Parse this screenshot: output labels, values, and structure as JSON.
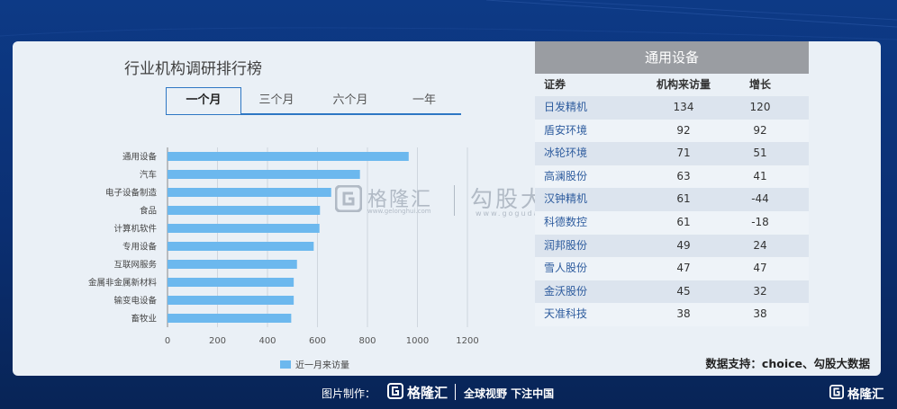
{
  "title": "行业机构调研排行榜",
  "tabs": [
    "一个月",
    "三个月",
    "六个月",
    "一年"
  ],
  "active_tab": 0,
  "watermark": {
    "name1": "格隆汇",
    "url1": "www.gelonghui.com",
    "name2": "勾股大数据",
    "url2": "www.gogudata.com"
  },
  "colors": {
    "bar": "#6cb8ee",
    "grid": "#cfd6de",
    "header": "#9a9da2",
    "accent": "#2e77c4"
  },
  "chart_data": {
    "type": "bar",
    "orientation": "horizontal",
    "categories": [
      "通用设备",
      "汽车",
      "电子设备制造",
      "食品",
      "计算机软件",
      "专用设备",
      "互联网服务",
      "金属非金属新材料",
      "输变电设备",
      "畜牧业"
    ],
    "series": [
      {
        "name": "近一月来访量",
        "values": [
          965,
          770,
          655,
          610,
          608,
          585,
          518,
          505,
          505,
          495
        ]
      }
    ],
    "xlim": [
      0,
      1200
    ],
    "xticks": [
      "0",
      "200",
      "400",
      "600",
      "800",
      "1000",
      "1200"
    ],
    "grid": true,
    "legend": "bottom"
  },
  "table": {
    "title": "通用设备",
    "headers": [
      "证券",
      "机构来访量",
      "增长"
    ],
    "rows": [
      [
        "日发精机",
        "134",
        "120"
      ],
      [
        "盾安环境",
        "92",
        "92"
      ],
      [
        "冰轮环境",
        "71",
        "51"
      ],
      [
        "高澜股份",
        "63",
        "41"
      ],
      [
        "汉钟精机",
        "61",
        "-44"
      ],
      [
        "科德数控",
        "61",
        "-18"
      ],
      [
        "润邦股份",
        "49",
        "24"
      ],
      [
        "雪人股份",
        "47",
        "47"
      ],
      [
        "金沃股份",
        "45",
        "32"
      ],
      [
        "天准科技",
        "38",
        "38"
      ]
    ]
  },
  "source": "数据支持：choice、勾股大数据",
  "footer": {
    "made_by": "图片制作：",
    "brand": "格隆汇",
    "slogan": "全球视野 下注中国",
    "brand_right": "格隆汇"
  }
}
